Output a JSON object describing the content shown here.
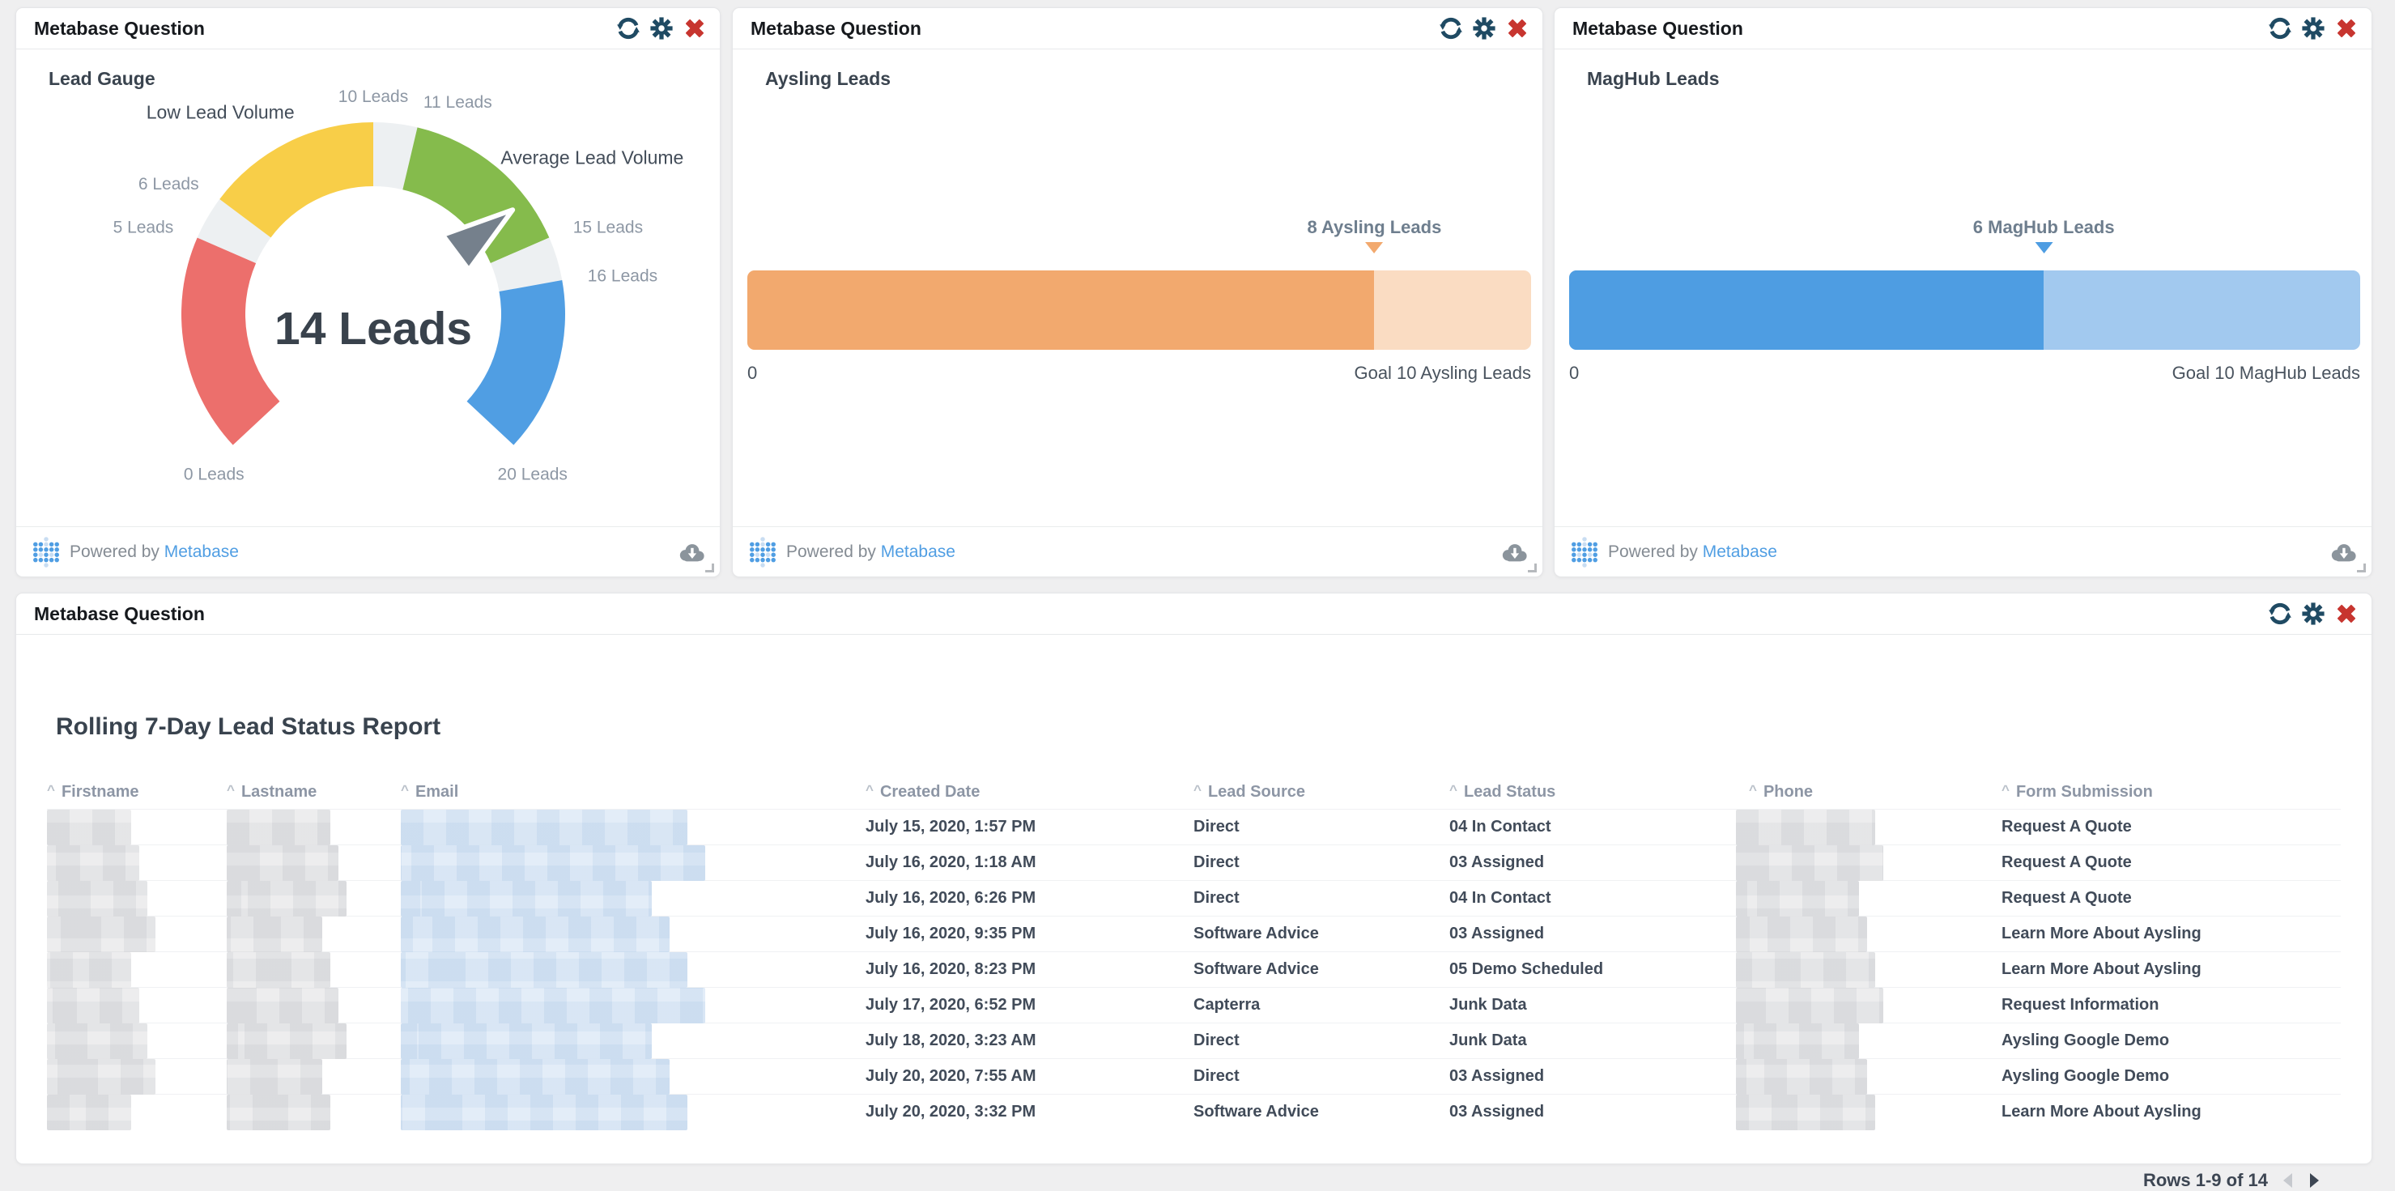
{
  "card_header_label": "Metabase Question",
  "icons": {
    "refresh": "circular-arrows",
    "settings": "gear",
    "remove": "x-cross",
    "download": "cloud-arrow-down",
    "logo": "metabase-dot-grid",
    "sort": "caret-up",
    "prev_page": "triangle-left",
    "next_page": "triangle-right"
  },
  "colors": {
    "brand_blue": "#509ee3",
    "icon_navy": "#1f4a63",
    "icon_red": "#c7352f",
    "gauge_red": "#ec6f6c",
    "gauge_yellow": "#f8ce48",
    "gauge_green": "#85bb4c",
    "gauge_blue": "#509ee3",
    "gauge_track": "#edf0f2",
    "orange_fill": "#f2a96e",
    "orange_track": "#fadcc2",
    "blue_fill": "#4e9de2",
    "blue_track": "#a2c9ef"
  },
  "cards": [
    {
      "id": "lead-gauge",
      "title": "Lead Gauge",
      "chart": {
        "type": "gauge",
        "min": 0,
        "max": 20,
        "value": 14,
        "value_label": "14 Leads",
        "start_angle": 223,
        "sweep": 266,
        "segments": [
          {
            "from": 0,
            "to": 5,
            "color": "#ec6f6c"
          },
          {
            "from": 5,
            "to": 6,
            "color": "#edf0f2"
          },
          {
            "from": 6,
            "to": 10,
            "color": "#f8ce48",
            "label": "Low Lead Volume",
            "label_at": 7.2,
            "label_r_off": 75
          },
          {
            "from": 10,
            "to": 11,
            "color": "#edf0f2"
          },
          {
            "from": 11,
            "to": 15,
            "color": "#85bb4c",
            "label": "Average Lead Volume",
            "label_at": 14.1,
            "label_r_off": 95
          },
          {
            "from": 15,
            "to": 16,
            "color": "#edf0f2"
          },
          {
            "from": 16,
            "to": 20,
            "color": "#509ee3"
          }
        ],
        "ticks": [
          {
            "value": 0,
            "label": "0 Leads"
          },
          {
            "value": 5,
            "label": "5 Leads"
          },
          {
            "value": 6,
            "label": "6 Leads"
          },
          {
            "value": 10,
            "label": "10 Leads"
          },
          {
            "value": 11,
            "label": "11 Leads"
          },
          {
            "value": 15,
            "label": "15 Leads"
          },
          {
            "value": 16,
            "label": "16 Leads"
          },
          {
            "value": 20,
            "label": "20 Leads"
          }
        ]
      }
    },
    {
      "id": "aysling-leads",
      "title": "Aysling Leads",
      "chart": {
        "type": "progress",
        "value": 8,
        "goal": 10,
        "marker_label": "8 Aysling Leads",
        "axis_start": "0",
        "axis_end": "Goal 10 Aysling Leads",
        "fill_color": "#f2a96e",
        "track_color": "#fadcc2"
      }
    },
    {
      "id": "maghub-leads",
      "title": "MagHub Leads",
      "chart": {
        "type": "progress",
        "value": 6,
        "goal": 10,
        "marker_label": "6 MagHub Leads",
        "axis_start": "0",
        "axis_end": "Goal 10 MagHub Leads",
        "fill_color": "#4e9de2",
        "track_color": "#a2c9ef"
      }
    }
  ],
  "footer": {
    "powered_by": "Powered by",
    "brand": "Metabase"
  },
  "report": {
    "title": "Rolling 7-Day Lead Status Report",
    "columns": [
      {
        "label": "Firstname",
        "redacted": true
      },
      {
        "label": "Lastname",
        "redacted": true
      },
      {
        "label": "Email",
        "redacted": true,
        "tint": "blue"
      },
      {
        "label": "Created Date",
        "key": "created_date"
      },
      {
        "label": "Lead Source",
        "key": "lead_source"
      },
      {
        "label": "Lead Status",
        "key": "lead_status"
      },
      {
        "label": "Phone",
        "redacted": true
      },
      {
        "label": "Form Submission",
        "key": "form_submission"
      }
    ],
    "rows": [
      {
        "created_date": "July 15, 2020, 1:57 PM",
        "lead_source": "Direct",
        "lead_status": "04 In Contact",
        "form_submission": "Request A Quote"
      },
      {
        "created_date": "July 16, 2020, 1:18 AM",
        "lead_source": "Direct",
        "lead_status": "03 Assigned",
        "form_submission": "Request A Quote"
      },
      {
        "created_date": "July 16, 2020, 6:26 PM",
        "lead_source": "Direct",
        "lead_status": "04 In Contact",
        "form_submission": "Request A Quote"
      },
      {
        "created_date": "July 16, 2020, 9:35 PM",
        "lead_source": "Software Advice",
        "lead_status": "03 Assigned",
        "form_submission": "Learn More About Aysling"
      },
      {
        "created_date": "July 16, 2020, 8:23 PM",
        "lead_source": "Software Advice",
        "lead_status": "05 Demo Scheduled",
        "form_submission": "Learn More About Aysling"
      },
      {
        "created_date": "July 17, 2020, 6:52 PM",
        "lead_source": "Capterra",
        "lead_status": "Junk Data",
        "form_submission": "Request Information"
      },
      {
        "created_date": "July 18, 2020, 3:23 AM",
        "lead_source": "Direct",
        "lead_status": "Junk Data",
        "form_submission": "Aysling Google Demo"
      },
      {
        "created_date": "July 20, 2020, 7:55 AM",
        "lead_source": "Direct",
        "lead_status": "03 Assigned",
        "form_submission": "Aysling Google Demo"
      },
      {
        "created_date": "July 20, 2020, 3:32 PM",
        "lead_source": "Software Advice",
        "lead_status": "03 Assigned",
        "form_submission": "Learn More About Aysling"
      }
    ],
    "pagination": {
      "label": "Rows 1-9 of 14"
    }
  },
  "chart_data": [
    {
      "type": "gauge",
      "title": "Lead Gauge",
      "value": 14,
      "value_label": "14 Leads",
      "min": 0,
      "max": 20,
      "bands": [
        {
          "range": [
            0,
            5
          ],
          "color": "#ec6f6c"
        },
        {
          "range": [
            6,
            10
          ],
          "color": "#f8ce48",
          "label": "Low Lead Volume"
        },
        {
          "range": [
            11,
            15
          ],
          "color": "#85bb4c",
          "label": "Average Lead Volume"
        },
        {
          "range": [
            16,
            20
          ],
          "color": "#509ee3"
        }
      ],
      "tick_labels": [
        "0 Leads",
        "5 Leads",
        "6 Leads",
        "10 Leads",
        "11 Leads",
        "15 Leads",
        "16 Leads",
        "20 Leads"
      ]
    },
    {
      "type": "bar",
      "title": "Aysling Leads",
      "categories": [
        "Aysling Leads"
      ],
      "values": [
        8
      ],
      "goal": 10,
      "xlabel": "",
      "ylabel": "",
      "annotations": [
        "8 Aysling Leads",
        "0",
        "Goal 10 Aysling Leads"
      ]
    },
    {
      "type": "bar",
      "title": "MagHub Leads",
      "categories": [
        "MagHub Leads"
      ],
      "values": [
        6
      ],
      "goal": 10,
      "xlabel": "",
      "ylabel": "",
      "annotations": [
        "6 MagHub Leads",
        "0",
        "Goal 10 MagHub Leads"
      ]
    }
  ]
}
